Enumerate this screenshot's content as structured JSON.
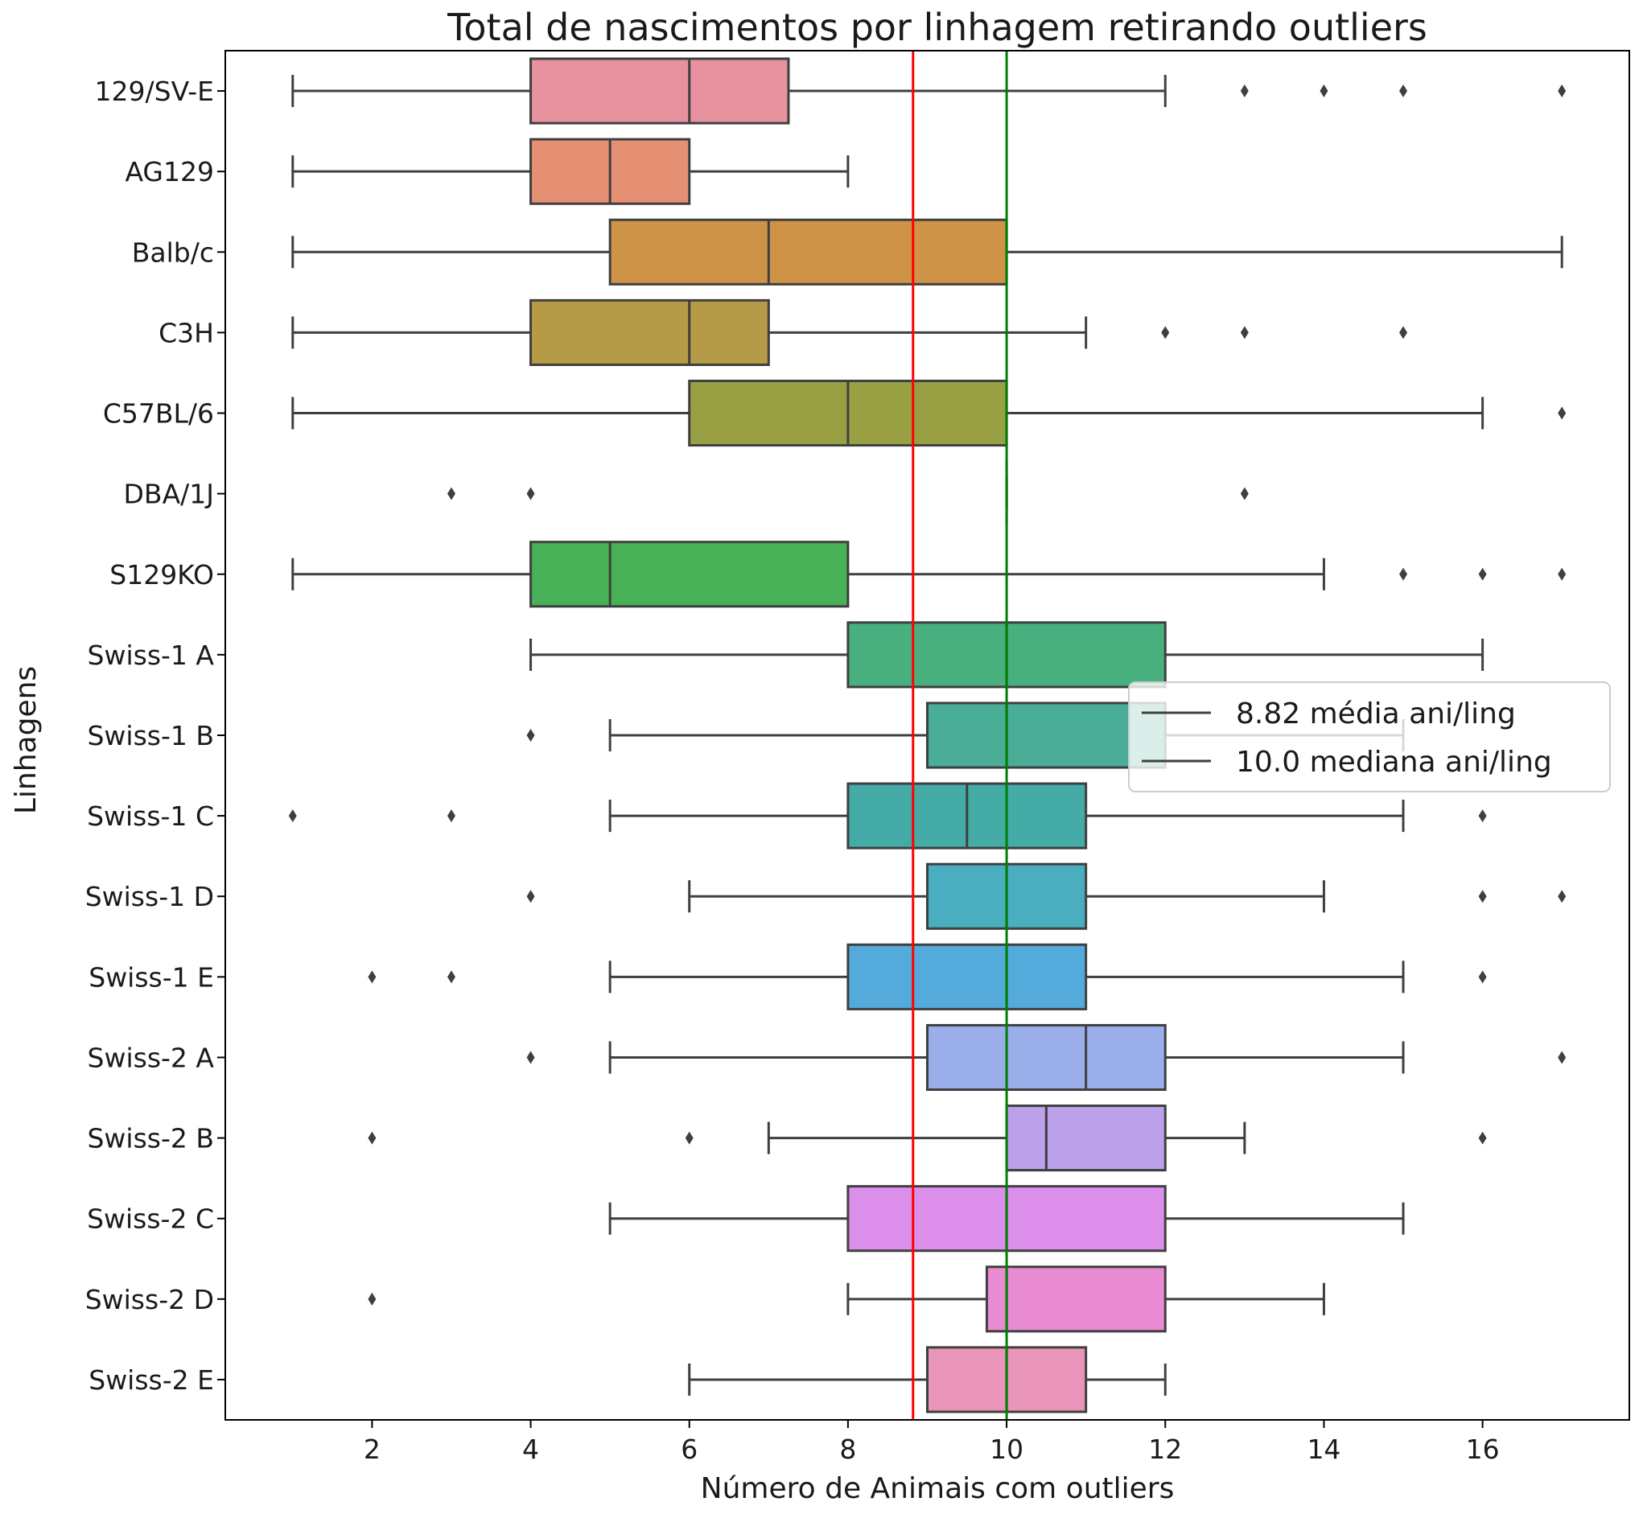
{
  "chart_data": {
    "type": "boxplot",
    "orientation": "horizontal",
    "title": "Total de nascimentos por linhagem retirando outliers",
    "xlabel": "Número de Animais com outliers",
    "ylabel": "Linhagens",
    "xlim": [
      0.15,
      17.85
    ],
    "xticks": [
      2,
      4,
      6,
      8,
      10,
      12,
      14,
      16
    ],
    "grid": false,
    "legend_position": "right",
    "reference_lines": [
      {
        "label": "8.82 média ani/ling",
        "value": 8.82,
        "color": "#ff0000"
      },
      {
        "label": "10.0 mediana ani/ling",
        "value": 10.0,
        "color": "#008000"
      }
    ],
    "categories": [
      "129/SV-E",
      "AG129",
      "Balb/c",
      "C3H",
      "C57BL/6",
      "DBA/1J",
      "S129KO",
      "Swiss-1 A",
      "Swiss-1 B",
      "Swiss-1 C",
      "Swiss-1 D",
      "Swiss-1 E",
      "Swiss-2 A",
      "Swiss-2 B",
      "Swiss-2 C",
      "Swiss-2 D",
      "Swiss-2 E"
    ],
    "boxes": [
      {
        "category": "129/SV-E",
        "whislo": 1,
        "q1": 4,
        "med": 6,
        "q3": 7.25,
        "whishi": 12,
        "fliers": [
          13,
          14,
          15,
          17
        ],
        "color": "#e8929f"
      },
      {
        "category": "AG129",
        "whislo": 1,
        "q1": 4,
        "med": 5,
        "q3": 6,
        "whishi": 8,
        "fliers": [],
        "color": "#e58f73"
      },
      {
        "category": "Balb/c",
        "whislo": 1,
        "q1": 5,
        "med": 7,
        "q3": 10,
        "whishi": 17,
        "fliers": [],
        "color": "#cf9347"
      },
      {
        "category": "C3H",
        "whislo": 1,
        "q1": 4,
        "med": 6,
        "q3": 7,
        "whishi": 11,
        "fliers": [
          12,
          13,
          15
        ],
        "color": "#b59b47"
      },
      {
        "category": "C57BL/6",
        "whislo": 1,
        "q1": 6,
        "med": 8,
        "q3": 10,
        "whishi": 16,
        "fliers": [
          17
        ],
        "color": "#99a044"
      },
      {
        "category": "DBA/1J",
        "whislo": 10,
        "q1": 10,
        "med": 10,
        "q3": 10,
        "whishi": 10,
        "fliers": [
          3,
          4,
          13
        ],
        "color": "#7aa73f"
      },
      {
        "category": "S129KO",
        "whislo": 1,
        "q1": 4,
        "med": 5,
        "q3": 8,
        "whishi": 14,
        "fliers": [
          15,
          16,
          17
        ],
        "color": "#48b056"
      },
      {
        "category": "Swiss-1 A",
        "whislo": 4,
        "q1": 8,
        "med": 10,
        "q3": 12,
        "whishi": 16,
        "fliers": [],
        "color": "#48b07f"
      },
      {
        "category": "Swiss-1 B",
        "whislo": 5,
        "q1": 9,
        "med": 10,
        "q3": 12,
        "whishi": 15,
        "fliers": [
          4
        ],
        "color": "#4aad97"
      },
      {
        "category": "Swiss-1 C",
        "whislo": 5,
        "q1": 8,
        "med": 9.5,
        "q3": 11,
        "whishi": 15,
        "fliers": [
          1,
          3,
          16
        ],
        "color": "#45aba7"
      },
      {
        "category": "Swiss-1 D",
        "whislo": 6,
        "q1": 9,
        "med": 10,
        "q3": 11,
        "whishi": 14,
        "fliers": [
          4,
          16,
          17
        ],
        "color": "#4aaec0"
      },
      {
        "category": "Swiss-1 E",
        "whislo": 5,
        "q1": 8,
        "med": 10,
        "q3": 11,
        "whishi": 15,
        "fliers": [
          2,
          3,
          16
        ],
        "color": "#54abdb"
      },
      {
        "category": "Swiss-2 A",
        "whislo": 5,
        "q1": 9,
        "med": 11,
        "q3": 12,
        "whishi": 15,
        "fliers": [
          4,
          17
        ],
        "color": "#9aaeea"
      },
      {
        "category": "Swiss-2 B",
        "whislo": 7,
        "q1": 10,
        "med": 10.5,
        "q3": 12,
        "whishi": 13,
        "fliers": [
          2,
          6,
          16
        ],
        "color": "#bca1ea"
      },
      {
        "category": "Swiss-2 C",
        "whislo": 5,
        "q1": 8,
        "med": 10,
        "q3": 12,
        "whishi": 15,
        "fliers": [],
        "color": "#dc8fea"
      },
      {
        "category": "Swiss-2 D",
        "whislo": 8,
        "q1": 9.75,
        "med": 10,
        "q3": 12,
        "whishi": 14,
        "fliers": [
          2
        ],
        "color": "#e98bd2"
      },
      {
        "category": "Swiss-2 E",
        "whislo": 6,
        "q1": 9,
        "med": 10,
        "q3": 11,
        "whishi": 12,
        "fliers": [],
        "color": "#e895b9"
      }
    ]
  }
}
